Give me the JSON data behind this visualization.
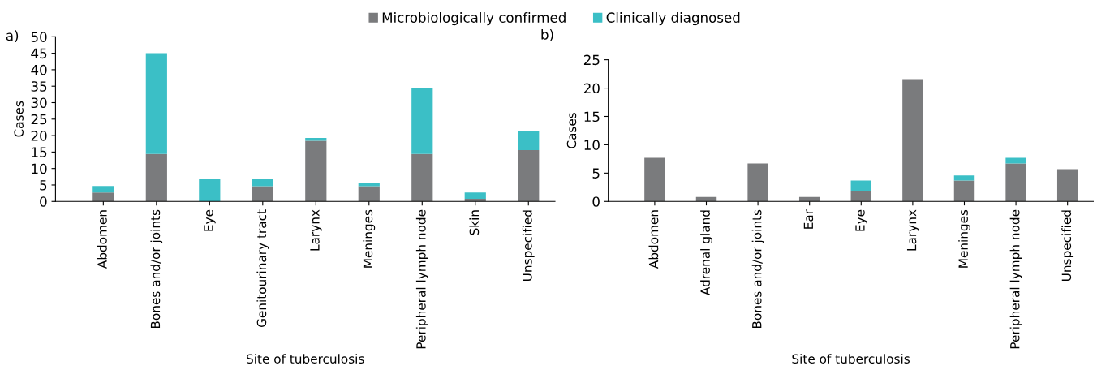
{
  "chart_data": [
    {
      "type": "bar",
      "stacked": true,
      "xlabel": "Site of tuberculosis",
      "ylabel": "Cases",
      "annotations": [
        "a)"
      ],
      "legend": "top",
      "categories": [
        "Abdomen",
        "Bones and/or joints",
        "Eye",
        "Genitourinary tract",
        "Larynx",
        "Meninges",
        "Peripheral lymph node",
        "Skin",
        "Unspecified"
      ],
      "ylim": [
        0,
        50
      ],
      "yticks": [
        0,
        5,
        10,
        15,
        20,
        25,
        30,
        35,
        40,
        45,
        50
      ],
      "series": [
        {
          "name": "Microbiologically confirmed",
          "color": "#7a7b7d",
          "values": [
            2.7,
            14.4,
            0,
            4.6,
            18.4,
            4.6,
            14.4,
            0.8,
            15.6
          ]
        },
        {
          "name": "Clinically diagnosed",
          "color": "#3bbfc6",
          "values": [
            2,
            30.6,
            6.8,
            2.2,
            0.9,
            1,
            20,
            1.9,
            5.9
          ]
        }
      ]
    },
    {
      "type": "bar",
      "stacked": true,
      "xlabel": "Site of tuberculosis",
      "ylabel": "Cases",
      "annotations": [
        "b)"
      ],
      "categories": [
        "Abdomen",
        "Adrenal gland",
        "Bones and/or joints",
        "Ear",
        "Eye",
        "Larynx",
        "Meninges",
        "Peripheral lymph node",
        "Unspecified"
      ],
      "ylim": [
        0,
        25
      ],
      "yticks": [
        0,
        5,
        10,
        15,
        20,
        25
      ],
      "series": [
        {
          "color": "#7a7b7d",
          "values": [
            7.7,
            0.8,
            6.7,
            0.8,
            1.8,
            21.6,
            3.7,
            6.7,
            5.7
          ]
        },
        {
          "color": "#3bbfc6",
          "values": [
            0,
            0,
            0,
            0,
            1.9,
            0,
            0.9,
            1,
            0
          ]
        }
      ]
    }
  ]
}
